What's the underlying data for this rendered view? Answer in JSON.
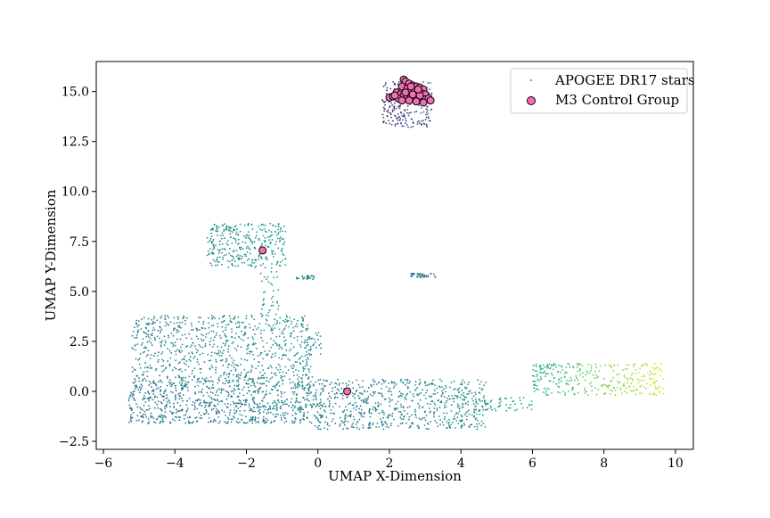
{
  "chart_data": {
    "type": "scatter",
    "title": "",
    "xlabel": "UMAP X-Dimension",
    "ylabel": "UMAP Y-Dimension",
    "xlim": [
      -6.2,
      10.5
    ],
    "ylim": [
      -2.9,
      16.5
    ],
    "xticks": [
      -6,
      -4,
      -2,
      0,
      2,
      4,
      6,
      8,
      10
    ],
    "xtick_labels": [
      "−6",
      "−4",
      "−2",
      "0",
      "2",
      "4",
      "6",
      "8",
      "10"
    ],
    "yticks": [
      -2.5,
      0.0,
      2.5,
      5.0,
      7.5,
      10.0,
      12.5,
      15.0
    ],
    "ytick_labels": [
      "−2.5",
      "0.0",
      "2.5",
      "5.0",
      "7.5",
      "10.0",
      "12.5",
      "15.0"
    ],
    "grid": false,
    "legend_position": "top-right",
    "series": [
      {
        "name": "APOGEE DR17 stars",
        "marker": "dot",
        "colormap": "viridis",
        "regions": [
          {
            "x": [
              -5.3,
              -0.1
            ],
            "y": [
              -1.6,
              0.8
            ],
            "count": 900,
            "value_range": [
              0.38,
              0.46
            ]
          },
          {
            "x": [
              -5.2,
              -0.2
            ],
            "y": [
              0.8,
              3.8
            ],
            "count": 700,
            "value_range": [
              0.42,
              0.52
            ]
          },
          {
            "x": [
              -3.1,
              -0.9
            ],
            "y": [
              6.2,
              8.4
            ],
            "count": 320,
            "value_range": [
              0.48,
              0.56
            ]
          },
          {
            "x": [
              -1.6,
              -1.1
            ],
            "y": [
              3.8,
              6.2
            ],
            "count": 40,
            "value_range": [
              0.48,
              0.55
            ]
          },
          {
            "x": [
              -0.6,
              -0.1
            ],
            "y": [
              5.6,
              5.8
            ],
            "count": 30,
            "value_range": [
              0.45,
              0.5
            ]
          },
          {
            "x": [
              -0.3,
              0.1
            ],
            "y": [
              1.8,
              3.0
            ],
            "count": 30,
            "value_range": [
              0.4,
              0.46
            ]
          },
          {
            "x": [
              -0.1,
              4.7
            ],
            "y": [
              -1.9,
              0.6
            ],
            "count": 700,
            "value_range": [
              0.4,
              0.5
            ]
          },
          {
            "x": [
              2.6,
              3.3
            ],
            "y": [
              5.7,
              5.9
            ],
            "count": 40,
            "value_range": [
              0.38,
              0.42
            ]
          },
          {
            "x": [
              4.6,
              6.0
            ],
            "y": [
              -1.0,
              -0.3
            ],
            "count": 50,
            "value_range": [
              0.5,
              0.6
            ]
          },
          {
            "x": [
              6.0,
              6.4
            ],
            "y": [
              0.6,
              1.3
            ],
            "count": 20,
            "value_range": [
              0.58,
              0.62
            ]
          },
          {
            "x": [
              6.0,
              9.7
            ],
            "y": [
              -0.2,
              1.4
            ],
            "count": 300,
            "value_range": [
              0.6,
              0.95
            ]
          },
          {
            "x": [
              1.8,
              3.2
            ],
            "y": [
              13.2,
              15.5
            ],
            "count": 220,
            "value_range": [
              0.12,
              0.3
            ]
          }
        ]
      },
      {
        "name": "M3 Control Group",
        "marker": "circle",
        "color": "#f16fb2",
        "edge_color": "#000000",
        "points": [
          [
            -1.55,
            7.05
          ],
          [
            0.82,
            0.0
          ],
          [
            2.4,
            15.6
          ],
          [
            2.45,
            15.5
          ],
          [
            2.55,
            15.4
          ],
          [
            2.65,
            15.3
          ],
          [
            2.75,
            15.25
          ],
          [
            2.85,
            15.2
          ],
          [
            2.95,
            15.1
          ],
          [
            2.35,
            15.25
          ],
          [
            2.5,
            15.15
          ],
          [
            2.6,
            15.05
          ],
          [
            2.7,
            15.0
          ],
          [
            2.8,
            14.95
          ],
          [
            2.9,
            14.9
          ],
          [
            3.0,
            14.85
          ],
          [
            2.2,
            14.95
          ],
          [
            2.3,
            14.85
          ],
          [
            2.4,
            14.8
          ],
          [
            2.5,
            14.75
          ],
          [
            2.6,
            14.7
          ],
          [
            2.7,
            14.65
          ],
          [
            2.8,
            14.7
          ],
          [
            2.9,
            14.65
          ],
          [
            3.0,
            14.6
          ],
          [
            3.1,
            14.65
          ],
          [
            3.15,
            14.55
          ],
          [
            2.0,
            14.7
          ],
          [
            2.1,
            14.75
          ],
          [
            2.25,
            14.65
          ],
          [
            2.45,
            14.95
          ],
          [
            2.65,
            14.85
          ],
          [
            2.85,
            14.8
          ],
          [
            2.55,
            14.55
          ],
          [
            2.75,
            14.5
          ],
          [
            2.95,
            14.45
          ],
          [
            2.35,
            14.55
          ],
          [
            2.15,
            14.8
          ],
          [
            2.6,
            15.25
          ],
          [
            2.8,
            15.1
          ]
        ]
      }
    ]
  }
}
